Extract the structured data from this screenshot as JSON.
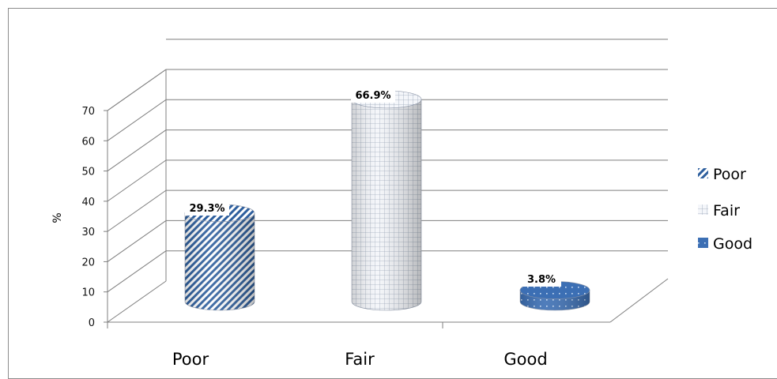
{
  "chart_data": {
    "type": "bar",
    "categories": [
      "Poor",
      "Fair",
      "Good"
    ],
    "series": [
      {
        "name": "Poor",
        "values": [
          29.3,
          null,
          null
        ]
      },
      {
        "name": "Fair",
        "values": [
          null,
          66.9,
          null
        ]
      },
      {
        "name": "Good",
        "values": [
          null,
          null,
          3.8
        ]
      }
    ],
    "data_labels": [
      "29.3%",
      "66.9%",
      "3.8%"
    ],
    "title": "",
    "xlabel": "",
    "ylabel": "%",
    "ylim": [
      0,
      70
    ],
    "yticks": [
      "0",
      "10",
      "20",
      "30",
      "40",
      "50",
      "60",
      "70"
    ],
    "grid": true,
    "legend_position": "right",
    "legend": [
      {
        "label": "Poor",
        "pattern": "diagonal-stripes"
      },
      {
        "label": "Fair",
        "pattern": "grid"
      },
      {
        "label": "Good",
        "pattern": "solid-dotted"
      }
    ],
    "colors": {
      "primary": "#2e5f9e",
      "fair_fill": "#f2f4f8",
      "fair_grid": "#9aa6b8",
      "good_fill": "#3c6fb4"
    }
  }
}
